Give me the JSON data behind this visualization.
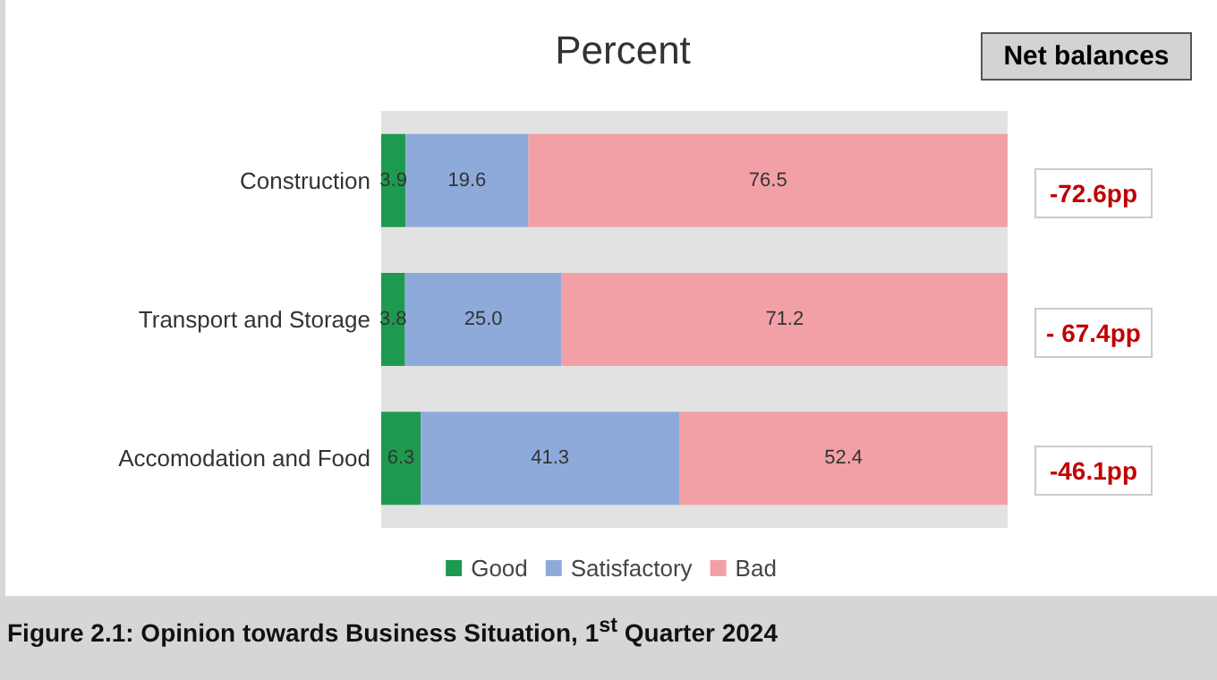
{
  "chart_data": {
    "type": "bar",
    "orientation": "horizontal",
    "stacked": true,
    "title": "Percent",
    "categories": [
      "Construction",
      "Transport and Storage",
      "Accomodation and Food"
    ],
    "series": [
      {
        "name": "Good",
        "color": "#1e9a50",
        "values": [
          3.9,
          3.8,
          6.3
        ],
        "value_labels": [
          "3.9",
          "3.8",
          "6.3"
        ]
      },
      {
        "name": "Satisfactory",
        "color": "#8eaadb",
        "values": [
          19.6,
          25.0,
          41.3
        ],
        "value_labels": [
          "19.6",
          "25.0",
          "41.3"
        ]
      },
      {
        "name": "Bad",
        "color": "#f2a0a6",
        "values": [
          76.5,
          71.2,
          52.4
        ],
        "value_labels": [
          "76.5",
          "71.2",
          "52.4"
        ]
      }
    ],
    "xlim": [
      0,
      100
    ],
    "tick_labels": "y",
    "grid": false,
    "legend": "bottom",
    "annotations": [
      "Net balances",
      "-72.6pp",
      "- 67.4pp",
      "-46.1pp",
      "Figure 2.1: Opinion towards Business Situation, 1$^{st}$ Quarter 2024"
    ]
  }
}
